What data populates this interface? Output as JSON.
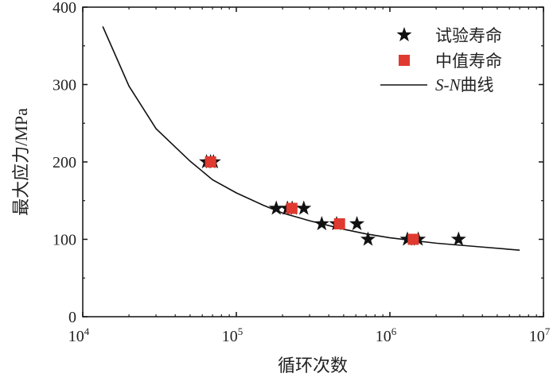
{
  "chart_data": {
    "type": "scatter",
    "xscale": "log",
    "xlabel": "循环次数",
    "ylabel": "最大应力/MPa",
    "xlim": [
      10000,
      10000000
    ],
    "ylim": [
      0,
      400
    ],
    "xticks": [
      {
        "value": 10000,
        "base": "10",
        "exp": "4"
      },
      {
        "value": 100000,
        "base": "10",
        "exp": "5"
      },
      {
        "value": 1000000,
        "base": "10",
        "exp": "6"
      },
      {
        "value": 10000000,
        "base": "10",
        "exp": "7"
      }
    ],
    "yticks": [
      "0",
      "100",
      "200",
      "300",
      "400"
    ],
    "grid": false,
    "legend_position": "top-right",
    "series": [
      {
        "name": "试验寿命",
        "marker": "star",
        "color": "#111111",
        "points": [
          [
            64000,
            200
          ],
          [
            68000,
            200
          ],
          [
            71000,
            200
          ],
          [
            182000,
            140
          ],
          [
            215000,
            140
          ],
          [
            231000,
            140
          ],
          [
            275000,
            140
          ],
          [
            360000,
            120
          ],
          [
            450000,
            120
          ],
          [
            610000,
            120
          ],
          [
            720000,
            100
          ],
          [
            1300000,
            100
          ],
          [
            1530000,
            100
          ],
          [
            2800000,
            100
          ]
        ]
      },
      {
        "name": "中值寿命",
        "marker": "square",
        "color": "#e03a30",
        "points": [
          [
            68000,
            200
          ],
          [
            230000,
            140
          ],
          [
            470000,
            120
          ],
          [
            1420000,
            100
          ]
        ]
      },
      {
        "name_italic": "S-N",
        "name_suffix": "曲线",
        "marker": "line",
        "color": "#111111",
        "points": [
          [
            13500,
            375
          ],
          [
            20000,
            298
          ],
          [
            30000,
            243
          ],
          [
            50000,
            201
          ],
          [
            70000,
            177
          ],
          [
            100000,
            160
          ],
          [
            150000,
            144
          ],
          [
            200000,
            134
          ],
          [
            300000,
            124
          ],
          [
            500000,
            113
          ],
          [
            700000,
            107
          ],
          [
            1000000,
            102
          ],
          [
            2000000,
            95
          ],
          [
            4000000,
            90
          ],
          [
            7000000,
            86
          ]
        ]
      }
    ]
  }
}
